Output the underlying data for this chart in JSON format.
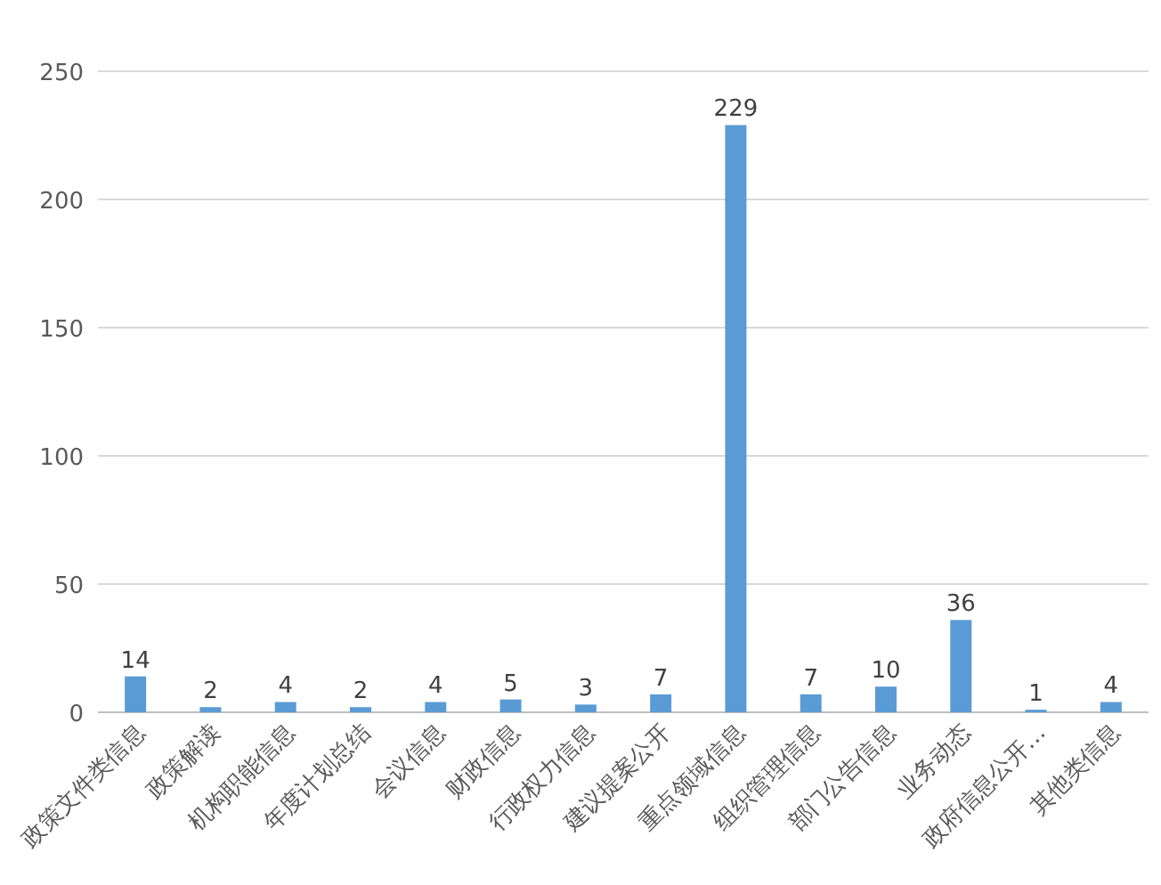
{
  "chart_data": {
    "type": "bar",
    "categories": [
      "政策文件类信息",
      "政策解读",
      "机构职能信息",
      "年度计划总结",
      "会议信息",
      "财政信息",
      "行政权力信息",
      "建议提案公开",
      "重点领域信息",
      "组织管理信息",
      "部门公告信息",
      "业务动态",
      "政府信息公开…",
      "其他类信息"
    ],
    "values": [
      14,
      2,
      4,
      2,
      4,
      5,
      3,
      7,
      229,
      7,
      10,
      36,
      1,
      4
    ],
    "color": "#5b9bd5",
    "ylim": [
      0,
      250
    ],
    "yticks": [
      0,
      50,
      100,
      150,
      200,
      250
    ],
    "grid": "y",
    "data_labels": true
  }
}
